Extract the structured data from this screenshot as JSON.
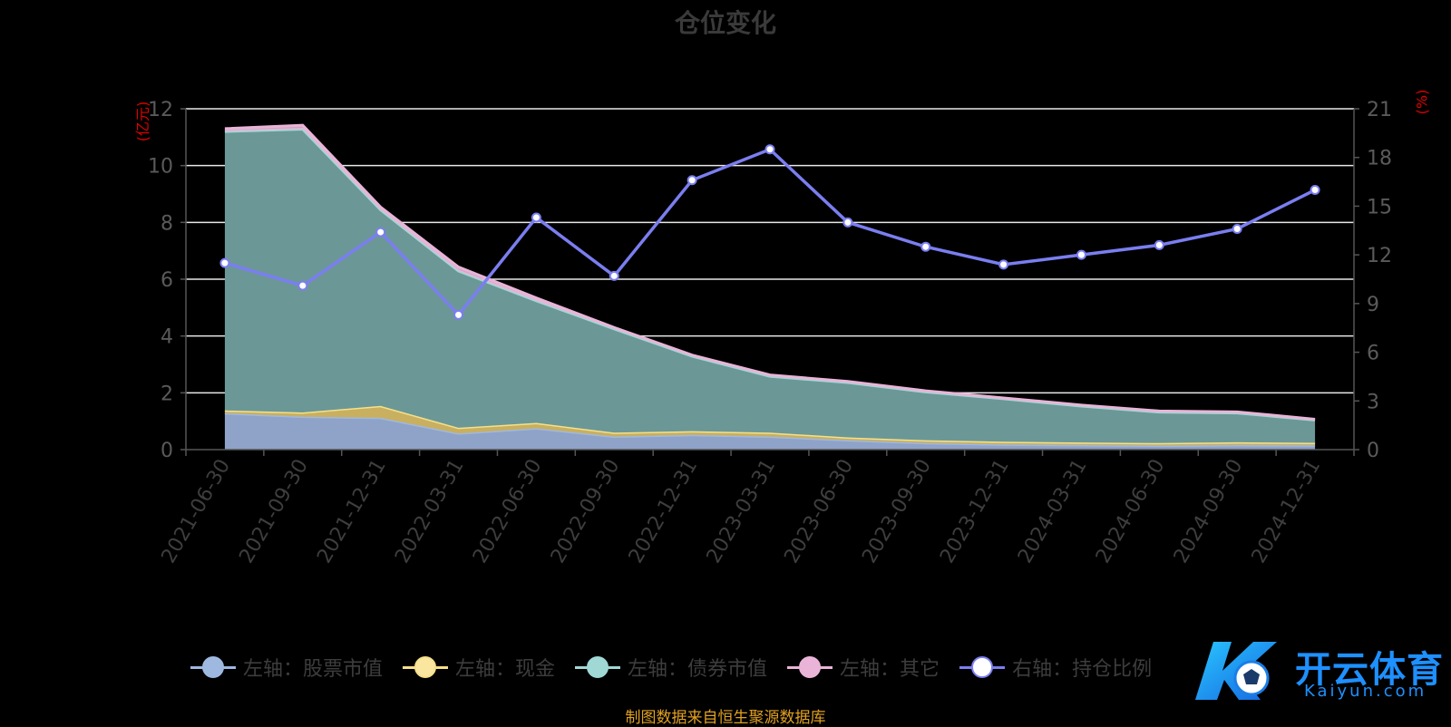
{
  "title": "仓位变化",
  "left_axis_unit": "(亿元)",
  "right_axis_unit": "(%)",
  "legend": [
    {
      "label": "左轴：股票市值",
      "color": "#9fb8e0",
      "line_color": "#9fb8e0"
    },
    {
      "label": "左轴：现金",
      "color": "#fbe6a0",
      "line_color": "#f6e08a"
    },
    {
      "label": "左轴：债券市值",
      "color": "#9fd8d4",
      "line_color": "#9fd8d4"
    },
    {
      "label": "左轴：其它",
      "color": "#e9b4d8",
      "line_color": "#e9b4d8"
    },
    {
      "label": "右轴：持仓比例",
      "color": "#ffffff",
      "line_color": "#7b7ef0"
    }
  ],
  "source": "制图数据来自恒生聚源数据库",
  "watermark": {
    "main": "开云体育",
    "sub": "Kaiyun.com"
  },
  "chart_data": {
    "type": "area",
    "categories": [
      "2021-06-30",
      "2021-09-30",
      "2021-12-31",
      "2022-03-31",
      "2022-06-30",
      "2022-09-30",
      "2022-12-31",
      "2023-03-31",
      "2023-06-30",
      "2023-09-30",
      "2023-12-31",
      "2024-03-31",
      "2024-06-30",
      "2024-09-30",
      "2024-12-31"
    ],
    "stacked": true,
    "series": [
      {
        "name": "左轴：股票市值",
        "axis": "left",
        "color": "#8fa2c8",
        "values": [
          1.28,
          1.16,
          1.12,
          0.57,
          0.75,
          0.46,
          0.52,
          0.46,
          0.33,
          0.23,
          0.18,
          0.16,
          0.14,
          0.16,
          0.15
        ]
      },
      {
        "name": "左轴：现金",
        "axis": "left",
        "color": "#c8b060",
        "values": [
          0.1,
          0.15,
          0.42,
          0.2,
          0.19,
          0.14,
          0.13,
          0.14,
          0.1,
          0.1,
          0.1,
          0.09,
          0.09,
          0.1,
          0.09
        ]
      },
      {
        "name": "左轴：债券市值",
        "axis": "left",
        "color": "#6b9896",
        "values": [
          9.82,
          9.97,
          6.9,
          5.52,
          4.3,
          3.65,
          2.64,
          1.98,
          1.93,
          1.7,
          1.51,
          1.28,
          1.09,
          1.03,
          0.8
        ]
      },
      {
        "name": "左轴：其它",
        "axis": "left",
        "color": "#e9b4d8",
        "values": [
          0.1,
          0.14,
          0.1,
          0.14,
          0.1,
          0.05,
          0.04,
          0.05,
          0.04,
          0.04,
          0.03,
          0.04,
          0.04,
          0.04,
          0.03
        ]
      },
      {
        "name": "右轴：持仓比例",
        "axis": "right",
        "type": "line",
        "color": "#7b7ef0",
        "values": [
          11.5,
          10.1,
          13.4,
          8.3,
          14.3,
          10.7,
          16.6,
          18.5,
          14.0,
          12.5,
          11.4,
          12.0,
          12.6,
          13.6,
          16.0
        ]
      }
    ],
    "left_axis": {
      "min": 0,
      "max": 12,
      "ticks": [
        0,
        2,
        4,
        6,
        8,
        10,
        12
      ]
    },
    "right_axis": {
      "min": 0,
      "max": 21,
      "ticks": [
        0,
        3,
        6,
        9,
        12,
        15,
        18,
        21
      ]
    },
    "grid": true,
    "legend_position": "bottom"
  }
}
